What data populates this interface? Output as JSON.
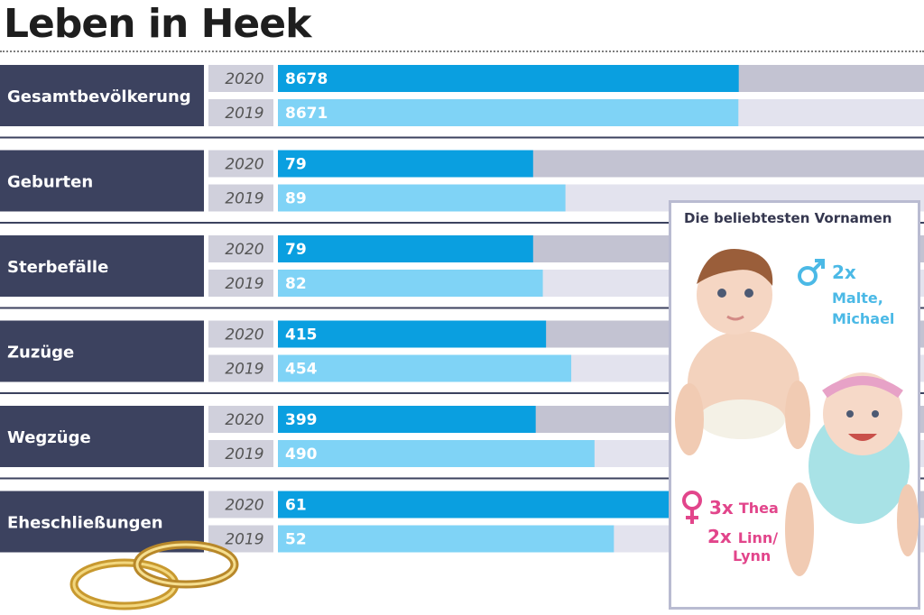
{
  "title": "Leben in Heek",
  "chart_data": {
    "type": "bar",
    "orientation": "horizontal",
    "series_names": [
      "2020",
      "2019"
    ],
    "colors": {
      "bar_2020": "#0a9fe0",
      "bar_2019": "#7fd3f6",
      "track_2020": "#c3c3d2",
      "track_2019": "#e3e3ee",
      "label_bg": "#3c425f",
      "year_bg": "#d0d0dc",
      "separator": "#3c425f"
    },
    "categories": [
      {
        "label": "Gesamtbevölkerung",
        "values": [
          {
            "year": "2020",
            "value": 8678
          },
          {
            "year": "2019",
            "value": 8671
          }
        ]
      },
      {
        "label": "Geburten",
        "values": [
          {
            "year": "2020",
            "value": 79
          },
          {
            "year": "2019",
            "value": 89
          }
        ]
      },
      {
        "label": "Sterbefälle",
        "values": [
          {
            "year": "2020",
            "value": 79
          },
          {
            "year": "2019",
            "value": 82
          }
        ]
      },
      {
        "label": "Zuzüge",
        "values": [
          {
            "year": "2020",
            "value": 415
          },
          {
            "year": "2019",
            "value": 454
          }
        ]
      },
      {
        "label": "Wegzüge",
        "values": [
          {
            "year": "2020",
            "value": 399
          },
          {
            "year": "2019",
            "value": 490
          }
        ]
      },
      {
        "label": "Eheschließungen",
        "values": [
          {
            "year": "2020",
            "value": 61
          },
          {
            "year": "2019",
            "value": 52
          }
        ]
      }
    ]
  },
  "names_panel": {
    "title": "Die beliebtesten Vornamen",
    "boys": {
      "count": "2x",
      "names_line1": "Malte,",
      "names_line2": "Michael",
      "color": "#4bb9e6"
    },
    "girls": {
      "count1": "3x",
      "name1": "Thea",
      "count2": "2x",
      "name2_line1": "Linn/",
      "name2_line2": "Lynn",
      "color": "#e2458b"
    }
  }
}
